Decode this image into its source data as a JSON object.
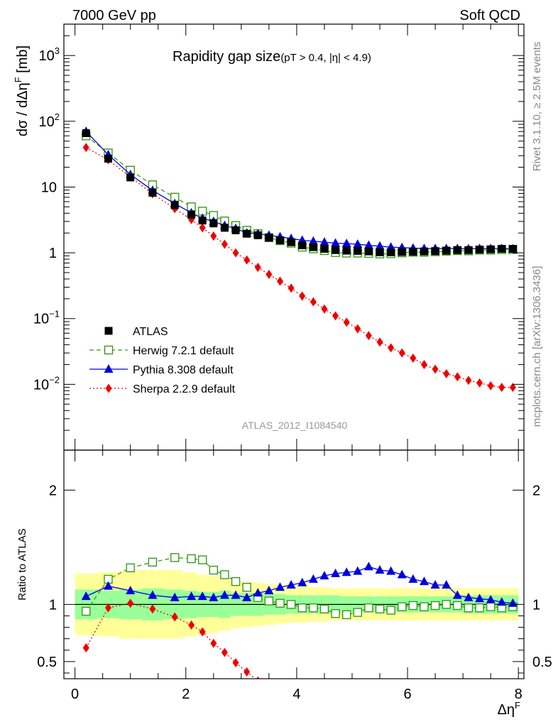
{
  "header": {
    "left": "7000 GeV pp",
    "right": "Soft QCD"
  },
  "side_text": {
    "rivet": "Rivet 3.1.10, ≥ 2.5M events",
    "mcplots": "mcplots.cern.ch [arXiv:1306.3436]"
  },
  "colors": {
    "atlas": "#000000",
    "herwig": "#3a9a1a",
    "pythia": "#0000dd",
    "sherpa": "#ee0000",
    "band_inner": "#99ff99",
    "band_outer": "#ffff99"
  },
  "chart_data": [
    {
      "type": "scatter",
      "title": "Rapidity gap size",
      "title_suffix": "(pT > 0.4, |η| < 4.9)",
      "ylabel": "dσ / dΔη^F [mb]",
      "y_scale": "log",
      "ylim": [
        0.001,
        3000
      ],
      "xlim": [
        -0.2,
        8.1
      ],
      "y_tick_labels": [
        "10^-2",
        "10^-1",
        "1",
        "10",
        "10^2",
        "10^3"
      ],
      "watermark": "ATLAS_2012_I1084540",
      "legend_placement": "lower-left",
      "x": [
        0.2,
        0.6,
        1.0,
        1.4,
        1.8,
        2.1,
        2.3,
        2.5,
        2.7,
        2.9,
        3.1,
        3.3,
        3.5,
        3.7,
        3.9,
        4.1,
        4.3,
        4.5,
        4.7,
        4.9,
        5.1,
        5.3,
        5.5,
        5.7,
        5.9,
        6.1,
        6.3,
        6.5,
        6.7,
        6.9,
        7.1,
        7.3,
        7.5,
        7.7,
        7.9
      ],
      "series": [
        {
          "name": "ATLAS",
          "marker": "filled-square",
          "values": [
            66,
            27,
            14,
            8.2,
            5.3,
            3.8,
            3.1,
            2.8,
            2.4,
            2.2,
            1.95,
            1.85,
            1.7,
            1.55,
            1.45,
            1.3,
            1.22,
            1.15,
            1.1,
            1.08,
            1.07,
            1.05,
            1.02,
            1.02,
            1.03,
            1.04,
            1.05,
            1.06,
            1.08,
            1.1,
            1.1,
            1.12,
            1.13,
            1.15,
            1.15
          ]
        },
        {
          "name": "Herwig 7.2.1 default",
          "marker": "open-square",
          "line": "dashed",
          "values": [
            60,
            33,
            18,
            10.8,
            7.0,
            5.0,
            4.3,
            3.7,
            3.05,
            2.6,
            2.2,
            1.95,
            1.7,
            1.53,
            1.4,
            1.22,
            1.15,
            1.08,
            1.01,
            0.99,
            0.99,
            0.98,
            0.96,
            0.97,
            1.0,
            1.02,
            1.02,
            1.04,
            1.06,
            1.08,
            1.07,
            1.1,
            1.1,
            1.12,
            1.12
          ]
        },
        {
          "name": "Pythia 8.308 default",
          "marker": "filled-triangle",
          "line": "solid",
          "values": [
            70,
            31,
            15.5,
            8.9,
            5.6,
            4.05,
            3.35,
            3.0,
            2.6,
            2.35,
            2.0,
            1.95,
            1.85,
            1.75,
            1.65,
            1.55,
            1.5,
            1.45,
            1.4,
            1.38,
            1.35,
            1.3,
            1.26,
            1.22,
            1.2,
            1.18,
            1.16,
            1.16,
            1.16,
            1.16,
            1.15,
            1.16,
            1.16,
            1.16,
            1.15
          ]
        },
        {
          "name": "Sherpa 2.2.9 default",
          "marker": "filled-diamond",
          "line": "dotted",
          "values": [
            40,
            26,
            14.2,
            7.9,
            4.7,
            3.2,
            2.4,
            1.8,
            1.35,
            1.0,
            0.78,
            0.6,
            0.47,
            0.37,
            0.29,
            0.22,
            0.18,
            0.14,
            0.11,
            0.088,
            0.07,
            0.055,
            0.044,
            0.036,
            0.03,
            0.025,
            0.02,
            0.017,
            0.0145,
            0.013,
            0.0115,
            0.0105,
            0.0095,
            0.009,
            0.009
          ]
        }
      ]
    },
    {
      "type": "scatter",
      "ylabel": "Ratio to ATLAS",
      "xlabel": "Δη^F",
      "ylim": [
        0.35,
        2.35
      ],
      "xlim": [
        -0.2,
        8.1
      ],
      "x_ticks": [
        0,
        2,
        4,
        6,
        8
      ],
      "y_tick_labels": [
        "0.5",
        "1",
        "2"
      ],
      "x": [
        0.2,
        0.6,
        1.0,
        1.4,
        1.8,
        2.1,
        2.3,
        2.5,
        2.7,
        2.9,
        3.1,
        3.3,
        3.5,
        3.7,
        3.9,
        4.1,
        4.3,
        4.5,
        4.7,
        4.9,
        5.1,
        5.3,
        5.5,
        5.7,
        5.9,
        6.1,
        6.3,
        6.5,
        6.7,
        6.9,
        7.1,
        7.3,
        7.5,
        7.7,
        7.9
      ],
      "reference": 1.0,
      "band_inner_halfwidth": [
        0.13,
        0.12,
        0.13,
        0.14,
        0.13,
        0.12,
        0.11,
        0.11,
        0.12,
        0.1,
        0.1,
        0.1,
        0.09,
        0.09,
        0.08,
        0.08,
        0.08,
        0.08,
        0.08,
        0.07,
        0.07,
        0.07,
        0.07,
        0.07,
        0.07,
        0.07,
        0.07,
        0.07,
        0.07,
        0.07,
        0.08,
        0.08,
        0.08,
        0.08,
        0.08
      ],
      "band_outer_halfwidth": [
        0.27,
        0.28,
        0.3,
        0.3,
        0.3,
        0.28,
        0.26,
        0.25,
        0.23,
        0.21,
        0.2,
        0.19,
        0.18,
        0.17,
        0.16,
        0.16,
        0.15,
        0.15,
        0.14,
        0.14,
        0.14,
        0.14,
        0.14,
        0.14,
        0.14,
        0.14,
        0.14,
        0.14,
        0.14,
        0.14,
        0.14,
        0.14,
        0.14,
        0.14,
        0.14
      ],
      "series": [
        {
          "name": "Herwig 7.2.1 default",
          "values": [
            0.94,
            1.22,
            1.32,
            1.37,
            1.41,
            1.4,
            1.39,
            1.3,
            1.26,
            1.2,
            1.15,
            1.06,
            1.03,
            1.01,
            1.0,
            0.97,
            0.97,
            0.96,
            0.92,
            0.91,
            0.93,
            0.97,
            0.96,
            0.95,
            0.98,
            0.99,
            0.98,
            0.99,
            1.0,
            0.99,
            0.97,
            0.97,
            0.98,
            0.97,
            0.98
          ]
        },
        {
          "name": "Pythia 8.308 default",
          "values": [
            1.07,
            1.16,
            1.12,
            1.08,
            1.06,
            1.07,
            1.07,
            1.06,
            1.08,
            1.08,
            1.06,
            1.1,
            1.12,
            1.15,
            1.17,
            1.19,
            1.22,
            1.25,
            1.27,
            1.28,
            1.29,
            1.33,
            1.3,
            1.29,
            1.26,
            1.22,
            1.2,
            1.17,
            1.17,
            1.08,
            1.06,
            1.05,
            1.04,
            1.02,
            1.01
          ]
        },
        {
          "name": "Sherpa 2.2.9 default",
          "values": [
            0.62,
            0.97,
            1.01,
            0.96,
            0.89,
            0.82,
            0.76,
            0.66,
            0.58,
            0.49,
            0.41,
            0.33
          ]
        }
      ]
    }
  ]
}
